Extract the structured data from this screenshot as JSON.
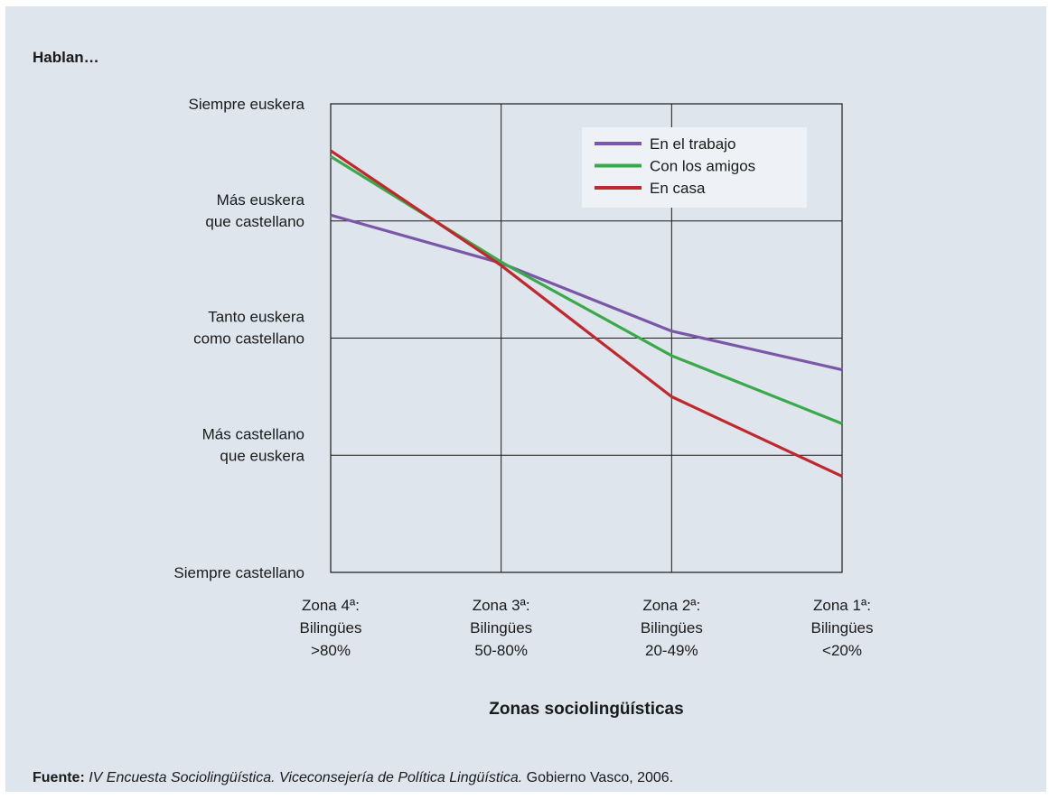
{
  "chart_data": {
    "type": "line",
    "ylabel": "Hablan…",
    "xlabel": "Zonas sociolingüísticas",
    "categories": [
      [
        "Zona 4ª:",
        "Bilingües",
        ">80%"
      ],
      [
        "Zona 3ª:",
        "Bilingües",
        "50-80%"
      ],
      [
        "Zona 2ª:",
        "Bilingües",
        "20-49%"
      ],
      [
        "Zona 1ª:",
        "Bilingües",
        "<20%"
      ]
    ],
    "y_ticks": [
      [
        "Siempre castellano"
      ],
      [
        "Más castellano",
        "que euskera"
      ],
      [
        "Tanto euskera",
        "como castellano"
      ],
      [
        "Más euskera",
        "que castellano"
      ],
      [
        "Siempre euskera"
      ]
    ],
    "ylim": [
      1,
      5
    ],
    "grid": true,
    "legend_position": "top-right",
    "series": [
      {
        "name": "En el trabajo",
        "color": "#7b57a8",
        "values": [
          4.05,
          3.64,
          3.06,
          2.73
        ]
      },
      {
        "name": "Con los amigos",
        "color": "#3aa94a",
        "values": [
          4.55,
          3.65,
          2.85,
          2.27
        ]
      },
      {
        "name": "En casa",
        "color": "#c0282d",
        "values": [
          4.6,
          3.62,
          2.5,
          1.82
        ]
      }
    ]
  },
  "source": {
    "label": "Fuente:",
    "title": "IV Encuesta Sociolingüística. Viceconsejería de Política Lingüística.",
    "rest": "Gobierno Vasco, 2006."
  }
}
